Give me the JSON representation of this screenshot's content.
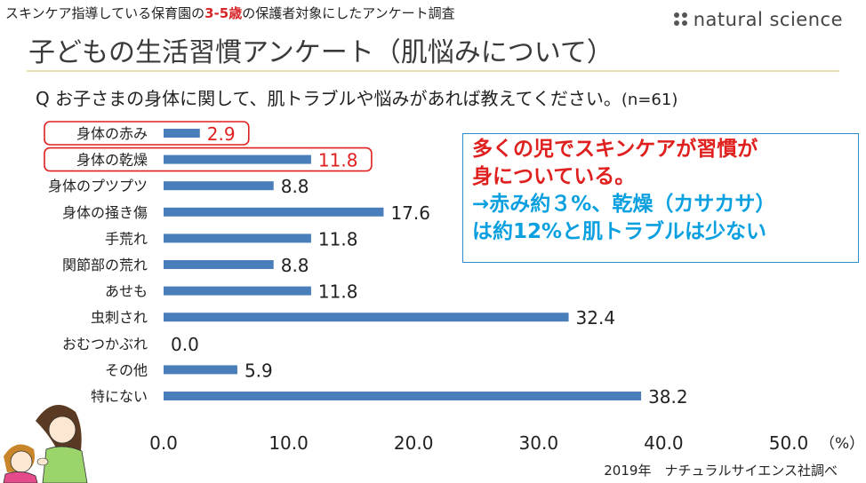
{
  "header": {
    "subtitle_pre": "スキンケア指導している保育園の",
    "subtitle_highlight": "3-5歳",
    "subtitle_post": "の保護者対象にしたアンケート調査",
    "brand": "natural science",
    "title": "子どもの生活習慣アンケート（肌悩みについて）",
    "question": "Q  お子さまの身体に関して、肌トラブルや悩みがあれば教えてください。",
    "sample": "(n=61)"
  },
  "note": {
    "line1": "多くの児でスキンケアが習慣が",
    "line2": "身についている。",
    "line3": "→赤み約３%、乾燥（カサカサ）",
    "line4": "は約12%と肌トラブルは少ない"
  },
  "source": "2019年　ナチュラルサイエンス社調べ",
  "colors": {
    "bar": "#4a7ebb",
    "highlight": "#e0201e",
    "note_red": "#e0201e",
    "note_blue": "#0aa0e0"
  },
  "chart_data": {
    "type": "bar",
    "orientation": "horizontal",
    "categories": [
      "身体の赤み",
      "身体の乾燥",
      "身体のプツプツ",
      "身体の掻き傷",
      "手荒れ",
      "関節部の荒れ",
      "あせも",
      "虫刺され",
      "おむつかぶれ",
      "その他",
      "特にない"
    ],
    "values": [
      2.9,
      11.8,
      8.8,
      17.6,
      11.8,
      8.8,
      11.8,
      32.4,
      0.0,
      5.9,
      38.2
    ],
    "value_labels": [
      "2.9",
      "11.8",
      "8.8",
      "17.6",
      "11.8",
      "8.8",
      "11.8",
      "32.4",
      "0.0",
      "5.9",
      "38.2"
    ],
    "highlighted": [
      0,
      1
    ],
    "xlim": [
      0,
      50
    ],
    "xticks": [
      "0.0",
      "10.0",
      "20.0",
      "30.0",
      "40.0",
      "50.0"
    ],
    "xunit": "（%）",
    "grid": false
  }
}
